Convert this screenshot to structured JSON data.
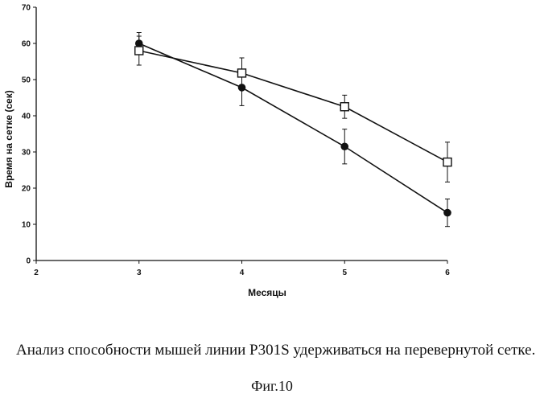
{
  "chart_data": {
    "type": "line",
    "title": "",
    "xlabel": "Месяцы",
    "ylabel": "Время на сетке (сек)",
    "xlim": [
      2,
      6
    ],
    "ylim": [
      0,
      70
    ],
    "x_ticks": [
      "2",
      "3",
      "4",
      "5",
      "6"
    ],
    "y_ticks": [
      "0",
      "10",
      "20",
      "30",
      "40",
      "50",
      "60",
      "70"
    ],
    "grid": false,
    "legend": "none",
    "series": [
      {
        "marker": "filled-circle",
        "color": "#111111",
        "x": [
          3,
          4,
          5,
          6
        ],
        "y": [
          60,
          47.8,
          31.5,
          13.2
        ],
        "error": [
          3.0,
          5.0,
          4.8,
          3.8
        ]
      },
      {
        "marker": "open-square",
        "color": "#111111",
        "x": [
          3,
          4,
          5,
          6
        ],
        "y": [
          58,
          51.8,
          42.5,
          27.2
        ],
        "error": [
          4.0,
          4.2,
          3.2,
          5.5
        ]
      }
    ]
  },
  "caption": {
    "text": "Анализ способности мышей линии P301S удерживаться на перевернутой сетке.",
    "figure_label": "Фиг.10"
  }
}
